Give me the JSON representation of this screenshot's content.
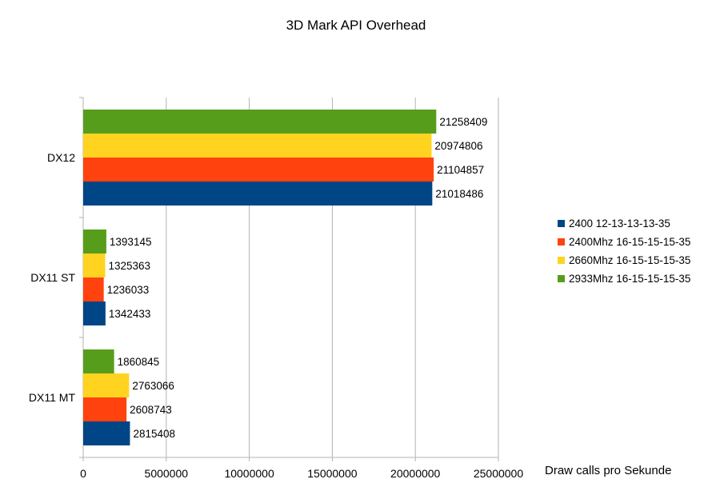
{
  "chart_data": {
    "type": "bar",
    "orientation": "horizontal",
    "title": "3D Mark API Overhead",
    "xlabel": "Draw calls pro Sekunde",
    "ylabel": "",
    "xlim": [
      0,
      25000000
    ],
    "ticks": [
      "0",
      "5000000",
      "10000000",
      "15000000",
      "20000000",
      "25000000"
    ],
    "grid": true,
    "legend_position": "right",
    "categories": [
      "DX12",
      "DX11 ST",
      "DX11 MT"
    ],
    "series": [
      {
        "name": "2400 12-13-13-13-35",
        "color": "#004586",
        "values": [
          21018486,
          1342433,
          2815408
        ]
      },
      {
        "name": "2400Mhz 16-15-15-15-35",
        "color": "#ff420e",
        "values": [
          21104857,
          1236033,
          2608743
        ]
      },
      {
        "name": "2660Mhz 16-15-15-15-35",
        "color": "#ffd320",
        "values": [
          20974806,
          1325363,
          2763066
        ]
      },
      {
        "name": "2933Mhz 16-15-15-15-35",
        "color": "#579d1c",
        "values": [
          21258409,
          1393145,
          1860845
        ]
      }
    ]
  }
}
